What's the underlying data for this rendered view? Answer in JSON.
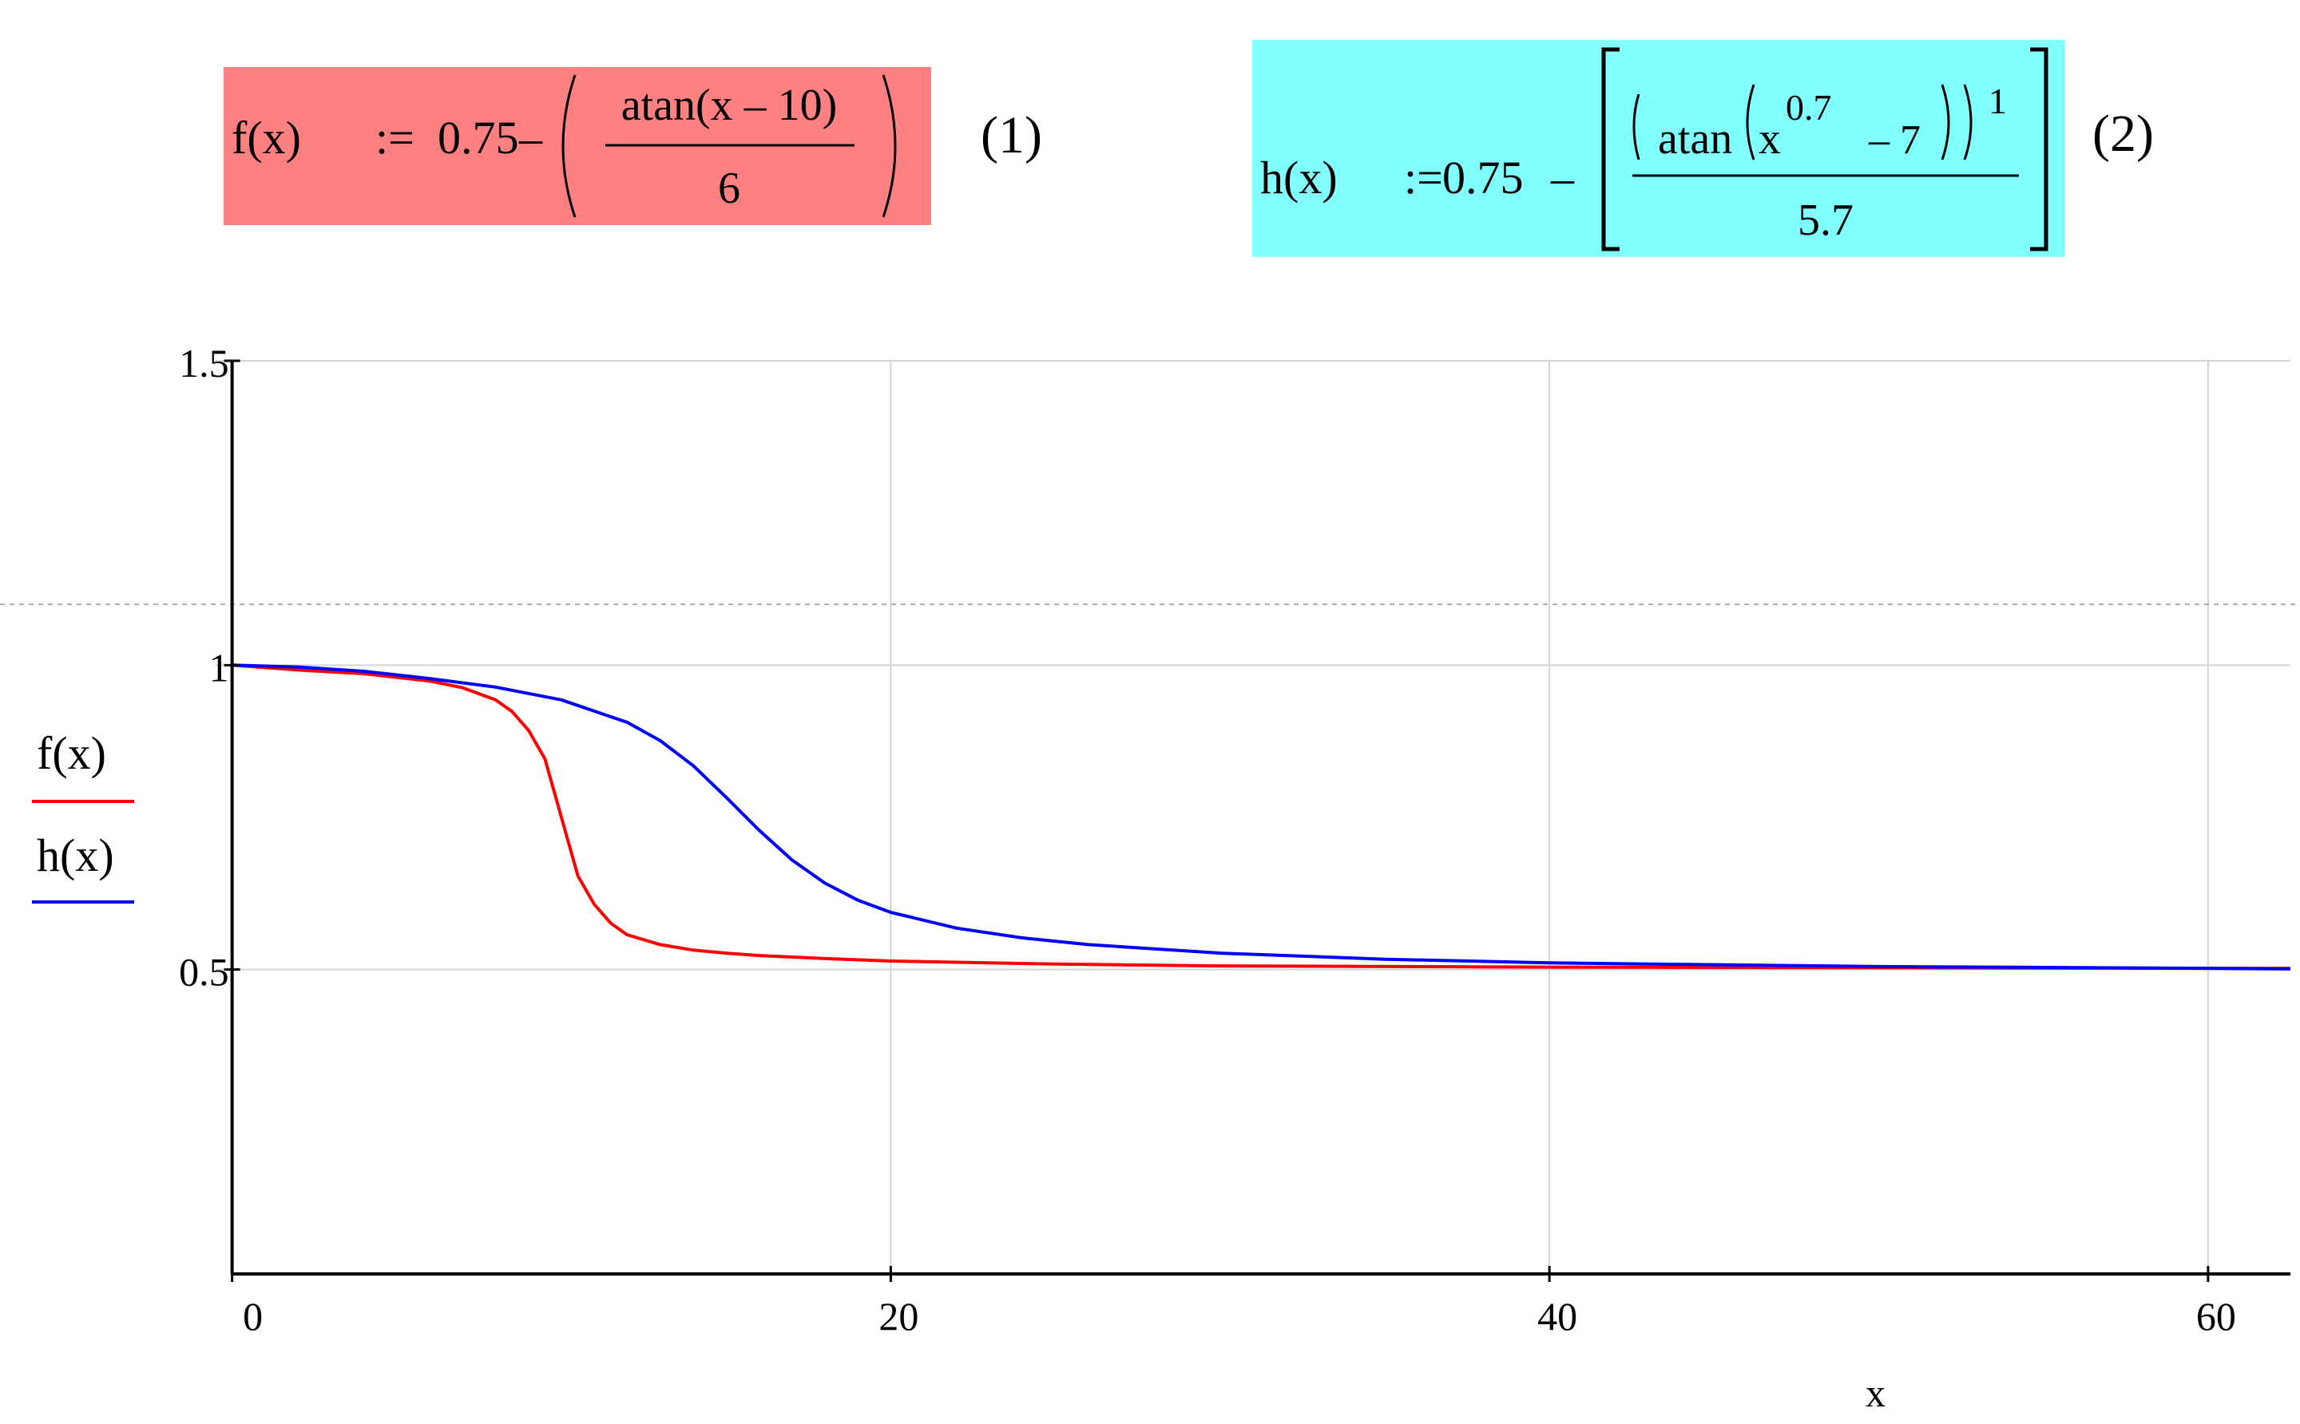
{
  "equations": [
    {
      "lhs": "f(x)",
      "assign": ":=",
      "constant": "0.75",
      "minus": "–",
      "numerator": "atan(x – 10)",
      "denominator": "6",
      "number": "(1)",
      "background": "#ff8080"
    },
    {
      "lhs": "h(x)",
      "assign": ":=",
      "constant": "0.75",
      "minus": "–",
      "atan": "atan",
      "base": "x",
      "power": "0.7",
      "minus7": "– 7",
      "outer_exponent": "1",
      "denominator": "5.7",
      "number": "(2)",
      "background": "#80ffff"
    }
  ],
  "chart_data": {
    "type": "line",
    "xlabel": "x",
    "ylabel": "",
    "xlim": [
      -0.5,
      62.5
    ],
    "ylim": [
      0,
      1.5
    ],
    "x_ticks": [
      0,
      20,
      40,
      60
    ],
    "x_tick_labels": [
      "0",
      "20",
      "40",
      "60"
    ],
    "y_ticks": [
      0.5,
      1,
      1.5
    ],
    "y_tick_labels": [
      "0.5",
      "1",
      "1.5"
    ],
    "grid": true,
    "reference_line_y": 1.1,
    "legend_placement": "left of y-axis, middle",
    "series": [
      {
        "name": "f(x)",
        "color": "#ff0000",
        "x": [
          0,
          2,
          4,
          6,
          7,
          8,
          8.5,
          9,
          9.5,
          10,
          10.5,
          11,
          11.5,
          12,
          13,
          14,
          15,
          16,
          18,
          20,
          25,
          30,
          40,
          50,
          60,
          62.5
        ],
        "y": [
          1.0,
          0.992,
          0.986,
          0.974,
          0.963,
          0.943,
          0.924,
          0.893,
          0.846,
          0.75,
          0.654,
          0.607,
          0.576,
          0.557,
          0.541,
          0.532,
          0.527,
          0.523,
          0.518,
          0.514,
          0.509,
          0.506,
          0.504,
          0.503,
          0.502,
          0.502
        ]
      },
      {
        "name": "h(x)",
        "color": "#0000ff",
        "x": [
          0,
          2,
          4,
          6,
          8,
          10,
          12,
          13,
          14,
          15,
          16,
          17,
          18,
          19,
          20,
          22,
          24,
          26,
          30,
          35,
          40,
          50,
          60,
          62.5
        ],
        "y": [
          1.0,
          0.997,
          0.99,
          0.978,
          0.964,
          0.943,
          0.906,
          0.876,
          0.835,
          0.783,
          0.729,
          0.68,
          0.642,
          0.614,
          0.594,
          0.568,
          0.552,
          0.541,
          0.527,
          0.517,
          0.511,
          0.505,
          0.502,
          0.501
        ]
      }
    ]
  }
}
